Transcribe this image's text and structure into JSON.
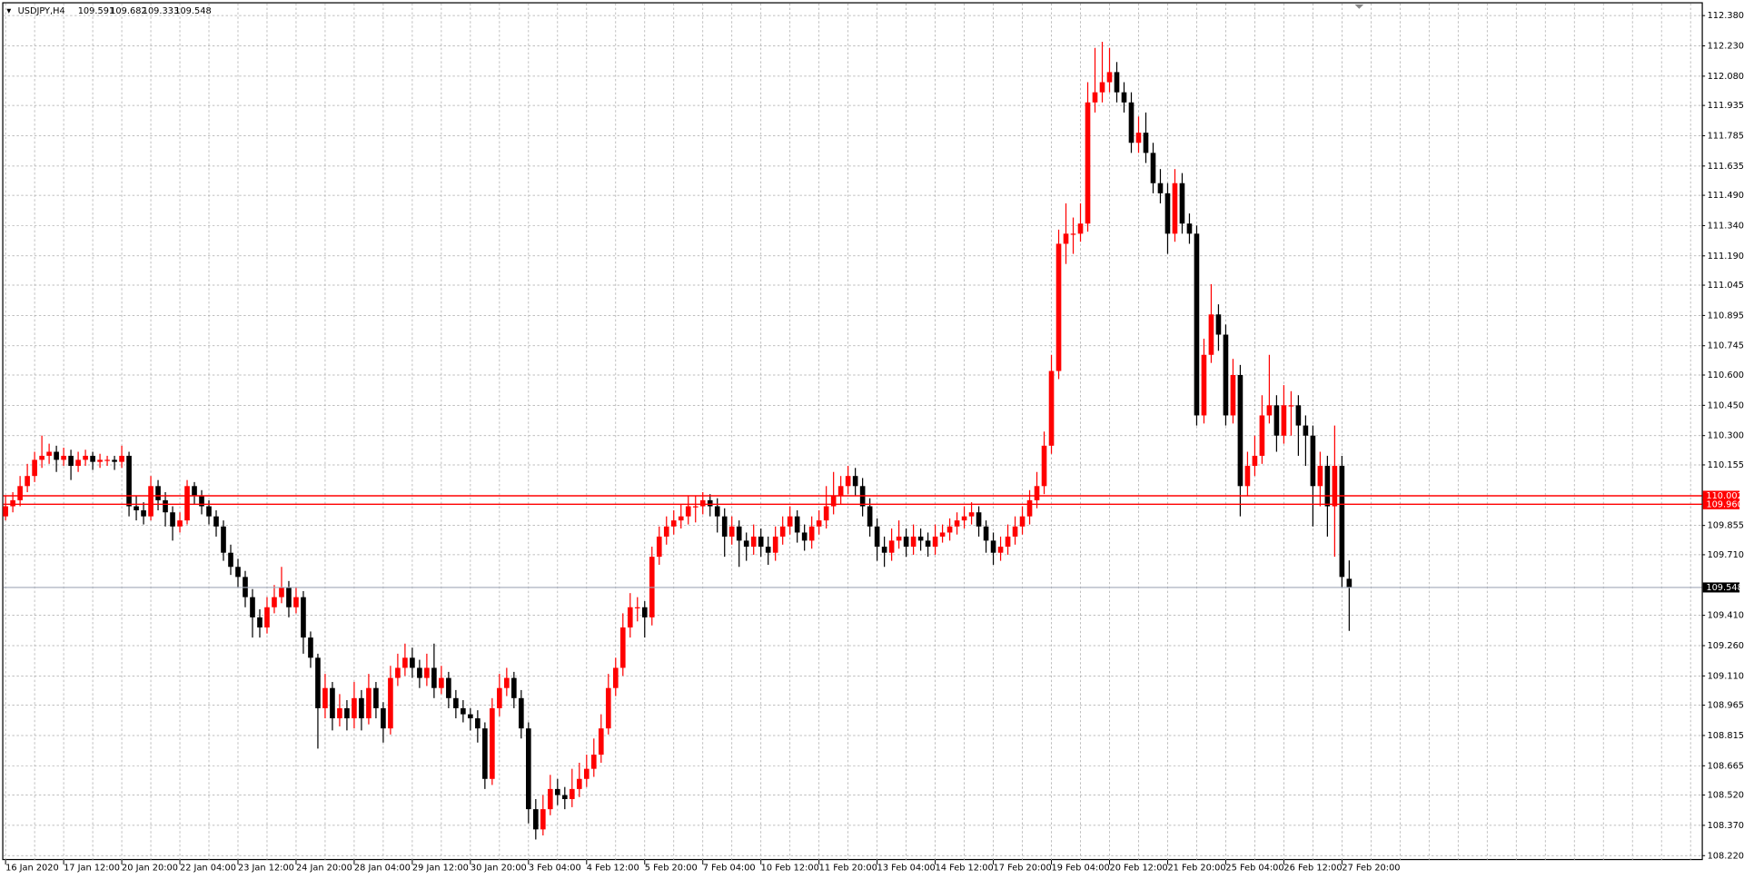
{
  "chart_data": {
    "type": "candlestick",
    "title": "USDJPY,H4",
    "up_color": "#ff0000",
    "down_color": "#000000",
    "grid": true,
    "grid_color": "#a8a8a8",
    "ylim": [
      108.22,
      112.38
    ],
    "yticks": [
      {
        "value": 112.38,
        "label": "112.380"
      },
      {
        "value": 112.23,
        "label": "112.230"
      },
      {
        "value": 112.08,
        "label": "112.080"
      },
      111.935,
      111.785,
      111.635,
      {
        "value": 111.49,
        "label": "111.490"
      },
      {
        "value": 111.34,
        "label": "111.340"
      },
      {
        "value": 111.19,
        "label": "111.190"
      },
      111.045,
      110.895,
      110.745,
      {
        "value": 110.6,
        "label": "110.600"
      },
      {
        "value": 110.45,
        "label": "110.450"
      },
      {
        "value": 110.3,
        "label": "110.300"
      },
      110.155,
      109.855,
      {
        "value": 109.71,
        "label": "109.710"
      },
      {
        "value": 109.41,
        "label": "109.410"
      },
      {
        "value": 109.26,
        "label": "109.260"
      },
      {
        "value": 109.11,
        "label": "109.110"
      },
      108.965,
      108.815,
      108.665,
      {
        "value": 108.52,
        "label": "108.520"
      },
      {
        "value": 108.37,
        "label": "108.370"
      },
      {
        "value": 108.22,
        "label": "108.220"
      }
    ],
    "levels": [
      {
        "value": 110.002,
        "label": "110.002",
        "color": "#ff0000"
      },
      {
        "value": 109.96,
        "label": "109.960",
        "color": "#ff0000"
      }
    ],
    "categories": [
      "16 Jan 2020",
      null,
      null,
      null,
      null,
      null,
      null,
      null,
      "17 Jan 12:00",
      null,
      null,
      null,
      null,
      null,
      null,
      null,
      "20 Jan 20:00",
      null,
      null,
      null,
      null,
      null,
      null,
      null,
      "22 Jan 04:00",
      null,
      null,
      null,
      null,
      null,
      null,
      null,
      "23 Jan 12:00",
      null,
      null,
      null,
      null,
      null,
      null,
      null,
      "24 Jan 20:00",
      null,
      null,
      null,
      null,
      null,
      null,
      null,
      "28 Jan 04:00",
      null,
      null,
      null,
      null,
      null,
      null,
      null,
      "29 Jan 12:00",
      null,
      null,
      null,
      null,
      null,
      null,
      null,
      "30 Jan 20:00",
      null,
      null,
      null,
      null,
      null,
      null,
      null,
      "3 Feb 04:00",
      null,
      null,
      null,
      null,
      null,
      null,
      null,
      "4 Feb 12:00",
      null,
      null,
      null,
      null,
      null,
      null,
      null,
      "5 Feb 20:00",
      null,
      null,
      null,
      null,
      null,
      null,
      null,
      "7 Feb 04:00",
      null,
      null,
      null,
      null,
      null,
      null,
      null,
      "10 Feb 12:00",
      null,
      null,
      null,
      null,
      null,
      null,
      null,
      "11 Feb 20:00",
      null,
      null,
      null,
      null,
      null,
      null,
      null,
      "13 Feb 04:00",
      null,
      null,
      null,
      null,
      null,
      null,
      null,
      "14 Feb 12:00",
      null,
      null,
      null,
      null,
      null,
      null,
      null,
      "17 Feb 20:00",
      null,
      null,
      null,
      null,
      null,
      null,
      null,
      "19 Feb 04:00",
      null,
      null,
      null,
      null,
      null,
      null,
      null,
      "20 Feb 12:00",
      null,
      null,
      null,
      null,
      null,
      null,
      null,
      "21 Feb 20:00",
      null,
      null,
      null,
      null,
      null,
      null,
      null,
      "25 Feb 04:00",
      null,
      null,
      null,
      null,
      null,
      null,
      null,
      "26 Feb 12:00",
      null,
      null,
      null,
      null,
      null,
      null,
      null,
      "27 Feb 20:00",
      null
    ],
    "ohlc": [
      [
        109.9,
        110.0,
        109.88,
        109.95
      ],
      [
        109.95,
        110.02,
        109.92,
        109.98
      ],
      [
        109.98,
        110.1,
        109.95,
        110.05
      ],
      [
        110.05,
        110.16,
        110.02,
        110.1
      ],
      [
        110.1,
        110.22,
        110.07,
        110.18
      ],
      [
        110.18,
        110.3,
        110.14,
        110.2
      ],
      [
        110.2,
        110.26,
        110.16,
        110.22
      ],
      [
        110.22,
        110.25,
        110.12,
        110.18
      ],
      [
        110.18,
        110.24,
        110.15,
        110.2
      ],
      [
        110.2,
        110.23,
        110.08,
        110.15
      ],
      [
        110.15,
        110.22,
        110.12,
        110.18
      ],
      [
        110.18,
        110.23,
        110.15,
        110.2
      ],
      [
        110.2,
        110.22,
        110.13,
        110.17
      ],
      [
        110.17,
        110.21,
        110.14,
        110.18
      ],
      [
        110.18,
        110.2,
        110.15,
        110.18
      ],
      [
        110.18,
        110.2,
        110.13,
        110.17
      ],
      [
        110.17,
        110.25,
        110.14,
        110.2
      ],
      [
        110.2,
        110.22,
        109.9,
        109.95
      ],
      [
        109.95,
        110.0,
        109.88,
        109.93
      ],
      [
        109.93,
        109.97,
        109.86,
        109.9
      ],
      [
        109.9,
        110.1,
        109.88,
        110.05
      ],
      [
        110.05,
        110.08,
        109.93,
        109.98
      ],
      [
        109.98,
        110.02,
        109.85,
        109.92
      ],
      [
        109.92,
        109.95,
        109.78,
        109.85
      ],
      [
        109.85,
        109.92,
        109.82,
        109.88
      ],
      [
        109.88,
        110.08,
        109.86,
        110.05
      ],
      [
        110.05,
        110.07,
        109.96,
        110.0
      ],
      [
        110.0,
        110.03,
        109.91,
        109.95
      ],
      [
        109.95,
        109.98,
        109.86,
        109.9
      ],
      [
        109.9,
        109.93,
        109.8,
        109.85
      ],
      [
        109.85,
        109.88,
        109.68,
        109.72
      ],
      [
        109.72,
        109.76,
        109.61,
        109.65
      ],
      [
        109.65,
        109.69,
        109.55,
        109.6
      ],
      [
        109.6,
        109.63,
        109.45,
        109.5
      ],
      [
        109.5,
        109.54,
        109.3,
        109.4
      ],
      [
        109.4,
        109.44,
        109.3,
        109.35
      ],
      [
        109.35,
        109.5,
        109.32,
        109.45
      ],
      [
        109.45,
        109.56,
        109.42,
        109.5
      ],
      [
        109.5,
        109.65,
        109.47,
        109.55
      ],
      [
        109.55,
        109.58,
        109.4,
        109.45
      ],
      [
        109.45,
        109.55,
        109.42,
        109.5
      ],
      [
        109.5,
        109.53,
        109.22,
        109.3
      ],
      [
        109.3,
        109.33,
        109.15,
        109.2
      ],
      [
        109.2,
        109.22,
        108.75,
        108.95
      ],
      [
        108.95,
        109.12,
        108.9,
        109.05
      ],
      [
        109.05,
        109.08,
        108.84,
        108.9
      ],
      [
        108.9,
        109.02,
        108.86,
        108.95
      ],
      [
        108.95,
        108.99,
        108.84,
        108.9
      ],
      [
        108.9,
        109.08,
        108.85,
        109.0
      ],
      [
        109.0,
        109.04,
        108.84,
        108.9
      ],
      [
        108.9,
        109.12,
        108.87,
        109.05
      ],
      [
        109.05,
        109.08,
        108.9,
        108.95
      ],
      [
        108.95,
        108.98,
        108.78,
        108.85
      ],
      [
        108.85,
        109.16,
        108.82,
        109.1
      ],
      [
        109.1,
        109.22,
        109.06,
        109.15
      ],
      [
        109.15,
        109.27,
        109.11,
        109.2
      ],
      [
        109.2,
        109.25,
        109.1,
        109.15
      ],
      [
        109.15,
        109.19,
        109.05,
        109.1
      ],
      [
        109.1,
        109.22,
        109.06,
        109.15
      ],
      [
        109.15,
        109.27,
        109.0,
        109.05
      ],
      [
        109.05,
        109.16,
        109.02,
        109.1
      ],
      [
        109.1,
        109.13,
        108.95,
        109.0
      ],
      [
        109.0,
        109.04,
        108.9,
        108.95
      ],
      [
        108.95,
        108.99,
        108.88,
        108.92
      ],
      [
        108.92,
        108.95,
        108.84,
        108.9
      ],
      [
        108.9,
        108.94,
        108.78,
        108.85
      ],
      [
        108.85,
        108.88,
        108.55,
        108.6
      ],
      [
        108.6,
        109.0,
        108.57,
        108.95
      ],
      [
        108.95,
        109.12,
        108.91,
        109.05
      ],
      [
        109.05,
        109.15,
        109.01,
        109.1
      ],
      [
        109.1,
        109.13,
        108.95,
        109.0
      ],
      [
        109.0,
        109.04,
        108.8,
        108.85
      ],
      [
        108.85,
        108.88,
        108.38,
        108.45
      ],
      [
        108.45,
        108.5,
        108.3,
        108.35
      ],
      [
        108.35,
        108.52,
        108.32,
        108.45
      ],
      [
        108.45,
        108.62,
        108.42,
        108.55
      ],
      [
        108.55,
        108.6,
        108.47,
        108.52
      ],
      [
        108.52,
        108.56,
        108.45,
        108.5
      ],
      [
        108.5,
        108.65,
        108.46,
        108.55
      ],
      [
        108.55,
        108.68,
        108.51,
        108.6
      ],
      [
        108.6,
        108.72,
        108.56,
        108.65
      ],
      [
        108.65,
        108.8,
        108.61,
        108.72
      ],
      [
        108.72,
        108.92,
        108.68,
        108.85
      ],
      [
        108.85,
        109.12,
        108.82,
        109.05
      ],
      [
        109.05,
        109.2,
        109.01,
        109.15
      ],
      [
        109.15,
        109.42,
        109.11,
        109.35
      ],
      [
        109.35,
        109.52,
        109.3,
        109.45
      ],
      [
        109.45,
        109.5,
        109.38,
        109.45
      ],
      [
        109.45,
        109.48,
        109.3,
        109.4
      ],
      [
        109.4,
        109.75,
        109.36,
        109.7
      ],
      [
        109.7,
        109.85,
        109.66,
        109.8
      ],
      [
        109.8,
        109.9,
        109.76,
        109.85
      ],
      [
        109.85,
        109.93,
        109.81,
        109.88
      ],
      [
        109.88,
        109.96,
        109.84,
        109.9
      ],
      [
        109.9,
        110.0,
        109.86,
        109.95
      ],
      [
        109.95,
        110.0,
        109.87,
        109.95
      ],
      [
        109.95,
        110.02,
        109.91,
        109.98
      ],
      [
        109.98,
        110.01,
        109.9,
        109.95
      ],
      [
        109.95,
        109.99,
        109.82,
        109.9
      ],
      [
        109.9,
        109.94,
        109.7,
        109.8
      ],
      [
        109.8,
        109.9,
        109.76,
        109.85
      ],
      [
        109.85,
        109.88,
        109.65,
        109.78
      ],
      [
        109.78,
        109.82,
        109.68,
        109.75
      ],
      [
        109.75,
        109.86,
        109.71,
        109.8
      ],
      [
        109.8,
        109.84,
        109.7,
        109.75
      ],
      [
        109.75,
        109.8,
        109.66,
        109.72
      ],
      [
        109.72,
        109.85,
        109.68,
        109.8
      ],
      [
        109.8,
        109.9,
        109.76,
        109.85
      ],
      [
        109.85,
        109.95,
        109.81,
        109.9
      ],
      [
        109.9,
        109.93,
        109.77,
        109.82
      ],
      [
        109.82,
        109.86,
        109.73,
        109.78
      ],
      [
        109.78,
        109.9,
        109.74,
        109.85
      ],
      [
        109.85,
        109.93,
        109.81,
        109.88
      ],
      [
        109.88,
        110.05,
        109.84,
        109.95
      ],
      [
        109.95,
        110.12,
        109.91,
        110.0
      ],
      [
        110.0,
        110.1,
        109.96,
        110.05
      ],
      [
        110.05,
        110.15,
        110.01,
        110.1
      ],
      [
        110.1,
        110.14,
        110.0,
        110.05
      ],
      [
        110.05,
        110.09,
        109.9,
        109.95
      ],
      [
        109.95,
        109.99,
        109.8,
        109.85
      ],
      [
        109.85,
        109.89,
        109.68,
        109.75
      ],
      [
        109.75,
        109.8,
        109.65,
        109.72
      ],
      [
        109.72,
        109.84,
        109.68,
        109.78
      ],
      [
        109.78,
        109.88,
        109.74,
        109.8
      ],
      [
        109.8,
        109.84,
        109.7,
        109.75
      ],
      [
        109.75,
        109.86,
        109.71,
        109.8
      ],
      [
        109.8,
        109.84,
        109.73,
        109.78
      ],
      [
        109.78,
        109.82,
        109.7,
        109.75
      ],
      [
        109.75,
        109.86,
        109.71,
        109.8
      ],
      [
        109.8,
        109.86,
        109.77,
        109.82
      ],
      [
        109.82,
        109.89,
        109.78,
        109.85
      ],
      [
        109.85,
        109.92,
        109.81,
        109.88
      ],
      [
        109.88,
        109.95,
        109.84,
        109.9
      ],
      [
        109.9,
        109.97,
        109.86,
        109.92
      ],
      [
        109.92,
        109.95,
        109.8,
        109.85
      ],
      [
        109.85,
        109.88,
        109.72,
        109.78
      ],
      [
        109.78,
        109.82,
        109.66,
        109.72
      ],
      [
        109.72,
        109.8,
        109.68,
        109.75
      ],
      [
        109.75,
        109.86,
        109.71,
        109.8
      ],
      [
        109.8,
        109.9,
        109.76,
        109.85
      ],
      [
        109.85,
        109.95,
        109.81,
        109.9
      ],
      [
        109.9,
        110.03,
        109.86,
        109.98
      ],
      [
        109.98,
        110.12,
        109.94,
        110.05
      ],
      [
        110.05,
        110.32,
        110.01,
        110.25
      ],
      [
        110.25,
        110.7,
        110.21,
        110.62
      ],
      [
        110.62,
        111.32,
        110.58,
        111.25
      ],
      [
        111.25,
        111.45,
        111.15,
        111.3
      ],
      [
        111.3,
        111.38,
        111.2,
        111.3
      ],
      [
        111.3,
        111.45,
        111.26,
        111.35
      ],
      [
        111.35,
        112.05,
        111.31,
        111.95
      ],
      [
        111.95,
        112.22,
        111.9,
        112.0
      ],
      [
        112.0,
        112.25,
        111.95,
        112.05
      ],
      [
        112.05,
        112.22,
        112.0,
        112.1
      ],
      [
        112.1,
        112.15,
        111.95,
        112.0
      ],
      [
        112.0,
        112.05,
        111.9,
        111.95
      ],
      [
        111.95,
        112.0,
        111.7,
        111.75
      ],
      [
        111.75,
        111.88,
        111.7,
        111.8
      ],
      [
        111.8,
        111.9,
        111.65,
        111.7
      ],
      [
        111.7,
        111.75,
        111.5,
        111.55
      ],
      [
        111.55,
        111.62,
        111.45,
        111.5
      ],
      [
        111.5,
        111.55,
        111.2,
        111.3
      ],
      [
        111.3,
        111.62,
        111.26,
        111.55
      ],
      [
        111.55,
        111.6,
        111.3,
        111.35
      ],
      [
        111.35,
        111.4,
        111.25,
        111.3
      ],
      [
        111.3,
        111.34,
        110.35,
        110.4
      ],
      [
        110.4,
        110.78,
        110.36,
        110.7
      ],
      [
        110.7,
        111.05,
        110.66,
        110.9
      ],
      [
        110.9,
        110.95,
        110.72,
        110.8
      ],
      [
        110.8,
        110.85,
        110.35,
        110.4
      ],
      [
        110.4,
        110.68,
        110.36,
        110.6
      ],
      [
        110.6,
        110.65,
        109.9,
        110.05
      ],
      [
        110.05,
        110.22,
        110.0,
        110.15
      ],
      [
        110.15,
        110.3,
        110.1,
        110.2
      ],
      [
        110.2,
        110.5,
        110.16,
        110.4
      ],
      [
        110.4,
        110.7,
        110.36,
        110.45
      ],
      [
        110.45,
        110.5,
        110.22,
        110.3
      ],
      [
        110.3,
        110.55,
        110.26,
        110.45
      ],
      [
        110.45,
        110.52,
        110.3,
        110.45
      ],
      [
        110.45,
        110.5,
        110.2,
        110.35
      ],
      [
        110.35,
        110.4,
        110.15,
        110.3
      ],
      [
        110.3,
        110.35,
        109.85,
        110.05
      ],
      [
        110.05,
        110.22,
        109.95,
        110.15
      ],
      [
        110.15,
        110.2,
        109.8,
        109.95
      ],
      [
        109.95,
        110.35,
        109.7,
        110.15
      ],
      [
        110.15,
        110.2,
        109.55,
        109.6
      ],
      [
        109.591,
        109.682,
        109.333,
        109.548
      ]
    ]
  }
}
